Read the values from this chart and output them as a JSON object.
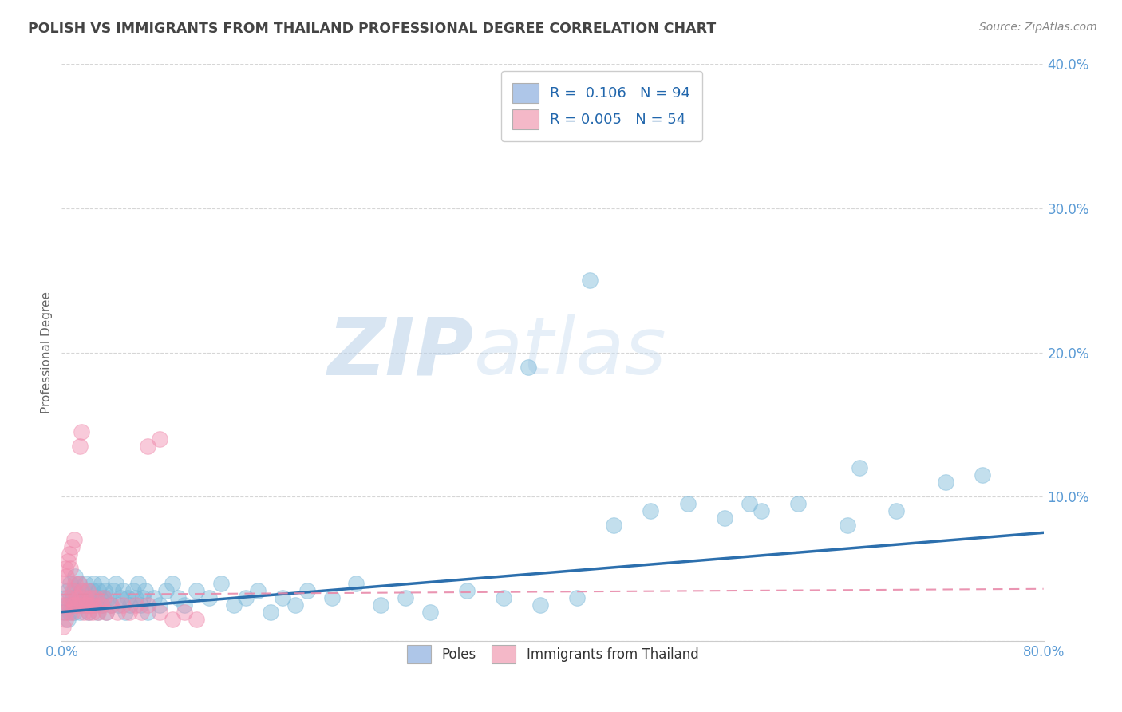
{
  "title": "POLISH VS IMMIGRANTS FROM THAILAND PROFESSIONAL DEGREE CORRELATION CHART",
  "source": "Source: ZipAtlas.com",
  "ylabel": "Professional Degree",
  "watermark_zip": "ZIP",
  "watermark_atlas": "atlas",
  "legend1_label": "R =  0.106   N = 94",
  "legend2_label": "R = 0.005   N = 54",
  "legend1_patch_color": "#aec6e8",
  "legend2_patch_color": "#f4b8c8",
  "blue_dot_color": "#7ab8d9",
  "pink_dot_color": "#f08bad",
  "blue_line_color": "#2c6fad",
  "pink_line_color": "#e88aaa",
  "background_color": "#ffffff",
  "grid_color": "#cccccc",
  "title_color": "#444444",
  "tick_color": "#5b9bd5",
  "ylabel_color": "#666666",
  "source_color": "#888888",
  "blue_scatter_x": [
    0.002,
    0.003,
    0.004,
    0.005,
    0.005,
    0.006,
    0.007,
    0.008,
    0.009,
    0.01,
    0.01,
    0.011,
    0.012,
    0.013,
    0.014,
    0.015,
    0.015,
    0.016,
    0.017,
    0.018,
    0.019,
    0.02,
    0.021,
    0.022,
    0.023,
    0.024,
    0.025,
    0.026,
    0.027,
    0.028,
    0.029,
    0.03,
    0.031,
    0.032,
    0.033,
    0.034,
    0.035,
    0.036,
    0.038,
    0.04,
    0.042,
    0.044,
    0.046,
    0.048,
    0.05,
    0.052,
    0.054,
    0.056,
    0.058,
    0.06,
    0.062,
    0.064,
    0.066,
    0.068,
    0.07,
    0.075,
    0.08,
    0.085,
    0.09,
    0.095,
    0.1,
    0.11,
    0.12,
    0.13,
    0.14,
    0.15,
    0.16,
    0.17,
    0.18,
    0.19,
    0.2,
    0.22,
    0.24,
    0.26,
    0.28,
    0.3,
    0.33,
    0.36,
    0.39,
    0.42,
    0.45,
    0.48,
    0.51,
    0.54,
    0.57,
    0.6,
    0.64,
    0.68,
    0.72,
    0.38,
    0.43,
    0.56,
    0.65,
    0.75
  ],
  "blue_scatter_y": [
    0.02,
    0.03,
    0.025,
    0.015,
    0.035,
    0.02,
    0.04,
    0.025,
    0.03,
    0.035,
    0.02,
    0.045,
    0.03,
    0.025,
    0.04,
    0.03,
    0.02,
    0.035,
    0.025,
    0.03,
    0.04,
    0.025,
    0.035,
    0.02,
    0.03,
    0.025,
    0.035,
    0.04,
    0.03,
    0.025,
    0.02,
    0.035,
    0.03,
    0.04,
    0.025,
    0.03,
    0.035,
    0.02,
    0.03,
    0.025,
    0.035,
    0.04,
    0.025,
    0.03,
    0.035,
    0.02,
    0.03,
    0.025,
    0.035,
    0.03,
    0.04,
    0.025,
    0.03,
    0.035,
    0.02,
    0.03,
    0.025,
    0.035,
    0.04,
    0.03,
    0.025,
    0.035,
    0.03,
    0.04,
    0.025,
    0.03,
    0.035,
    0.02,
    0.03,
    0.025,
    0.035,
    0.03,
    0.04,
    0.025,
    0.03,
    0.02,
    0.035,
    0.03,
    0.025,
    0.03,
    0.08,
    0.09,
    0.095,
    0.085,
    0.09,
    0.095,
    0.08,
    0.09,
    0.11,
    0.19,
    0.25,
    0.095,
    0.12,
    0.115
  ],
  "pink_scatter_x": [
    0.001,
    0.002,
    0.002,
    0.003,
    0.003,
    0.004,
    0.004,
    0.005,
    0.005,
    0.006,
    0.006,
    0.007,
    0.007,
    0.008,
    0.008,
    0.009,
    0.01,
    0.01,
    0.011,
    0.012,
    0.013,
    0.014,
    0.015,
    0.016,
    0.017,
    0.018,
    0.019,
    0.02,
    0.021,
    0.022,
    0.023,
    0.024,
    0.025,
    0.026,
    0.028,
    0.03,
    0.032,
    0.034,
    0.036,
    0.04,
    0.045,
    0.05,
    0.055,
    0.06,
    0.065,
    0.07,
    0.08,
    0.09,
    0.1,
    0.11,
    0.015,
    0.016,
    0.07,
    0.08
  ],
  "pink_scatter_y": [
    0.01,
    0.025,
    0.04,
    0.015,
    0.05,
    0.02,
    0.045,
    0.03,
    0.055,
    0.025,
    0.06,
    0.03,
    0.05,
    0.02,
    0.065,
    0.035,
    0.025,
    0.07,
    0.04,
    0.03,
    0.025,
    0.04,
    0.03,
    0.025,
    0.035,
    0.02,
    0.03,
    0.025,
    0.035,
    0.02,
    0.025,
    0.03,
    0.02,
    0.025,
    0.03,
    0.02,
    0.025,
    0.03,
    0.02,
    0.025,
    0.02,
    0.025,
    0.02,
    0.025,
    0.02,
    0.025,
    0.02,
    0.015,
    0.02,
    0.015,
    0.135,
    0.145,
    0.135,
    0.14
  ],
  "blue_trend_x": [
    0.0,
    0.8
  ],
  "blue_trend_y": [
    0.02,
    0.075
  ],
  "pink_trend_x": [
    0.0,
    0.8
  ],
  "pink_trend_y": [
    0.032,
    0.036
  ],
  "xlim": [
    0.0,
    0.8
  ],
  "ylim": [
    0.0,
    0.4
  ],
  "xticks": [
    0.0,
    0.8
  ],
  "xtick_labels": [
    "0.0%",
    "80.0%"
  ],
  "yticks": [
    0.0,
    0.1,
    0.2,
    0.3,
    0.4
  ],
  "ytick_labels": [
    "",
    "10.0%",
    "20.0%",
    "30.0%",
    "40.0%"
  ]
}
